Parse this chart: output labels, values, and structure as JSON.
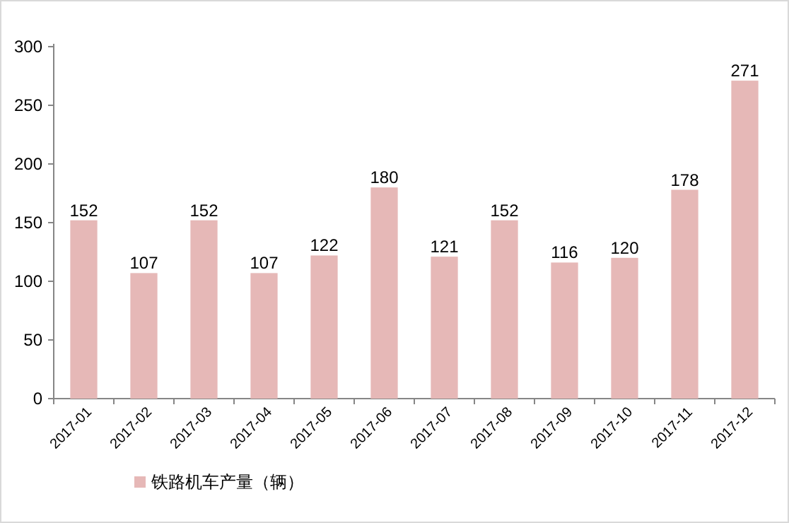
{
  "chart_data": {
    "type": "bar",
    "categories": [
      "2017-01",
      "2017-02",
      "2017-03",
      "2017-04",
      "2017-05",
      "2017-06",
      "2017-07",
      "2017-08",
      "2017-09",
      "2017-10",
      "2017-11",
      "2017-12"
    ],
    "series": [
      {
        "name": "铁路机车产量（辆）",
        "color": "#e6b8b7",
        "values": [
          152,
          107,
          152,
          107,
          122,
          180,
          121,
          152,
          116,
          120,
          178,
          271
        ]
      }
    ],
    "ylim": [
      0,
      300
    ],
    "yticks": [
      0,
      50,
      100,
      150,
      200,
      250,
      300
    ],
    "data_labels": true,
    "legend": "bottom"
  }
}
